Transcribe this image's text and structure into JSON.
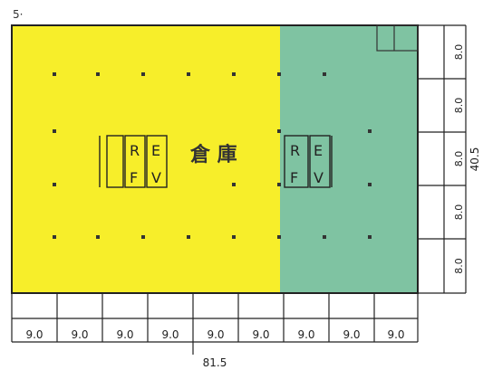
{
  "floor": {
    "corner_label": "5·",
    "room_label": "倉 庫",
    "left_zone_color": "#f7ee2a",
    "right_zone_color": "#7fc3a2",
    "elevator_groups": [
      {
        "top_left": "R",
        "top_right": "E",
        "bottom_left": "F",
        "bottom_right": "V"
      },
      {
        "top_left": "R",
        "top_right": "E",
        "bottom_left": "F",
        "bottom_right": "V"
      }
    ]
  },
  "dimensions": {
    "horizontal_spans": [
      "9.0",
      "9.0",
      "9.0",
      "9.0",
      "9.0",
      "9.0",
      "9.0",
      "9.0",
      "9.0"
    ],
    "horizontal_total": "81.5",
    "vertical_spans": [
      "8.0",
      "8.0",
      "8.0",
      "8.0",
      "8.0"
    ],
    "vertical_total": "40.5"
  }
}
